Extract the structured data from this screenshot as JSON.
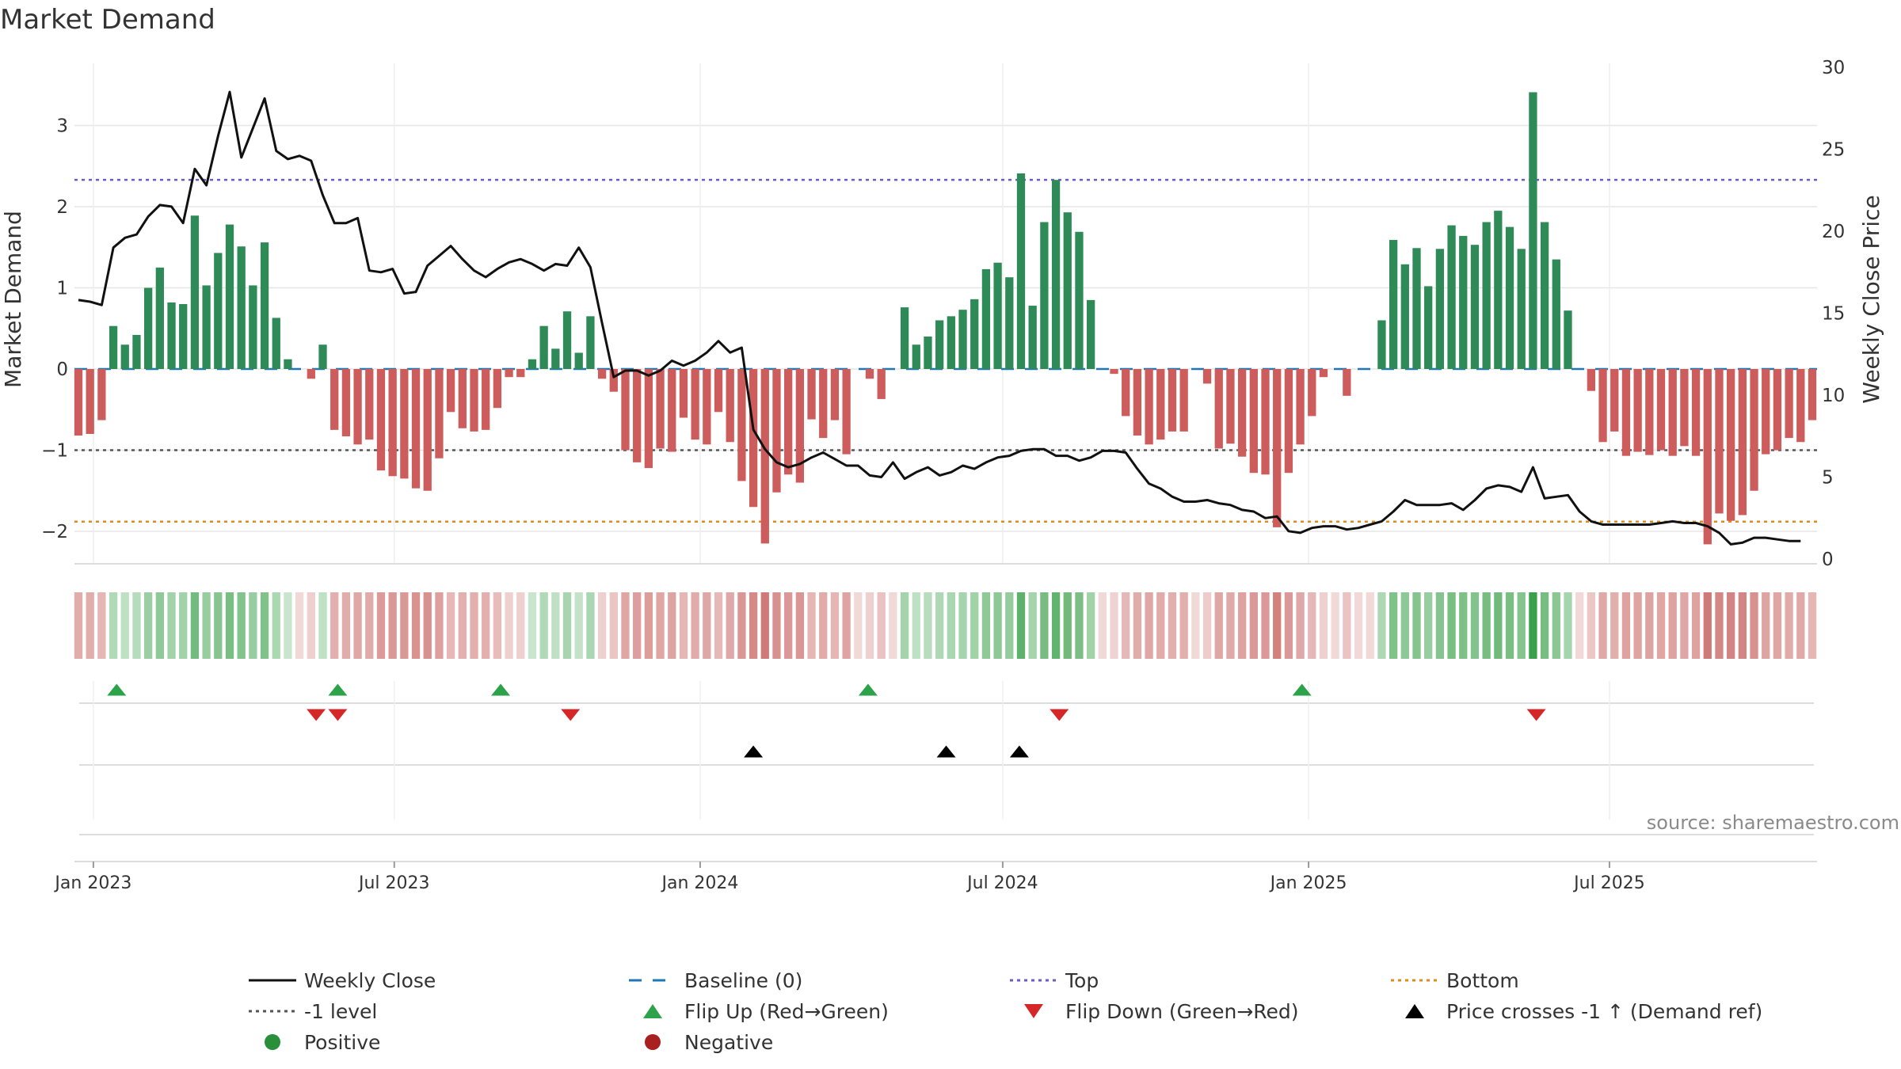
{
  "chart_data": {
    "type": "bar",
    "title": "Market Demand",
    "ylabel": "Market Demand",
    "y2label": "Weekly Close Price",
    "ylim": [
      -2.35,
      3.7
    ],
    "y2lim": [
      0,
      30
    ],
    "yticks": [
      -2,
      -1,
      0,
      1,
      2,
      3
    ],
    "y2ticks": [
      0,
      5,
      10,
      15,
      20,
      25,
      30
    ],
    "x_start": "2022-12-23",
    "x_step_days": 7,
    "xtick_labels": [
      {
        "label": "Jan 2023",
        "date": "2023-01-01"
      },
      {
        "label": "Jul 2023",
        "date": "2023-07-01"
      },
      {
        "label": "Jan 2024",
        "date": "2024-01-01"
      },
      {
        "label": "Jul 2024",
        "date": "2024-07-01"
      },
      {
        "label": "Jan 2025",
        "date": "2025-01-01"
      },
      {
        "label": "Jul 2025",
        "date": "2025-07-01"
      }
    ],
    "levels": {
      "baseline": 0,
      "top": 2.33,
      "minus_one": -1,
      "bottom": -1.88
    },
    "series": [
      {
        "name": "Market Demand",
        "values": [
          -0.82,
          -0.8,
          -0.63,
          0.53,
          0.3,
          0.42,
          1.0,
          1.25,
          0.82,
          0.8,
          1.89,
          1.03,
          1.43,
          1.78,
          1.51,
          1.03,
          1.56,
          0.63,
          0.12,
          0.0,
          -0.12,
          0.3,
          -0.75,
          -0.83,
          -0.93,
          -0.87,
          -1.25,
          -1.32,
          -1.35,
          -1.47,
          -1.5,
          -1.1,
          -0.53,
          -0.73,
          -0.77,
          -0.75,
          -0.48,
          -0.1,
          -0.1,
          0.12,
          0.53,
          0.25,
          0.71,
          0.2,
          0.65,
          -0.12,
          -0.28,
          -1.0,
          -1.15,
          -1.22,
          -0.98,
          -1.02,
          -0.6,
          -0.87,
          -0.93,
          -0.53,
          -0.9,
          -1.38,
          -1.7,
          -2.15,
          -1.52,
          -1.3,
          -1.4,
          -0.62,
          -0.85,
          -0.63,
          -1.05,
          0.0,
          -0.12,
          -0.37,
          0.0,
          0.76,
          0.3,
          0.4,
          0.6,
          0.65,
          0.73,
          0.86,
          1.23,
          1.31,
          1.13,
          2.41,
          0.78,
          1.81,
          2.33,
          1.93,
          1.69,
          0.85,
          0.0,
          -0.06,
          -0.58,
          -0.82,
          -0.93,
          -0.87,
          -0.77,
          -0.77,
          0.0,
          -0.18,
          -0.98,
          -0.92,
          -1.08,
          -1.28,
          -1.3,
          -1.95,
          -1.28,
          -0.93,
          -0.58,
          -0.1,
          0.0,
          -0.33,
          0.0,
          0.0,
          0.6,
          1.59,
          1.29,
          1.49,
          1.02,
          1.48,
          1.77,
          1.64,
          1.53,
          1.81,
          1.95,
          1.75,
          1.48,
          3.41,
          1.81,
          1.35,
          0.72,
          0.0,
          -0.27,
          -0.9,
          -0.77,
          -1.07,
          -1.02,
          -1.06,
          -1.0,
          -1.07,
          -0.95,
          -1.07,
          -2.16,
          -1.78,
          -1.87,
          -1.8,
          -1.5,
          -1.05,
          -1.0,
          -0.85,
          -0.9,
          -0.63
        ]
      },
      {
        "name": "Weekly Close",
        "values": [
          15.8,
          15.7,
          15.5,
          19.0,
          19.6,
          19.8,
          20.9,
          21.6,
          21.5,
          20.5,
          23.8,
          22.8,
          25.8,
          28.5,
          24.5,
          26.3,
          28.1,
          24.9,
          24.4,
          24.6,
          24.3,
          22.2,
          20.5,
          20.5,
          20.8,
          17.6,
          17.5,
          17.7,
          16.2,
          16.3,
          17.9,
          18.5,
          19.1,
          18.3,
          17.6,
          17.2,
          17.7,
          18.1,
          18.3,
          18.0,
          17.6,
          18.0,
          17.9,
          19.0,
          17.8,
          14.4,
          11.1,
          11.5,
          11.5,
          11.2,
          11.5,
          12.1,
          11.8,
          12.1,
          12.6,
          13.3,
          12.6,
          12.9,
          7.9,
          6.7,
          5.9,
          5.6,
          5.8,
          6.2,
          6.5,
          6.1,
          5.7,
          5.7,
          5.1,
          5.0,
          5.9,
          4.9,
          5.3,
          5.6,
          5.1,
          5.3,
          5.7,
          5.5,
          5.9,
          6.2,
          6.3,
          6.6,
          6.7,
          6.7,
          6.3,
          6.3,
          6.0,
          6.2,
          6.6,
          6.6,
          6.5,
          5.5,
          4.6,
          4.3,
          3.8,
          3.5,
          3.5,
          3.6,
          3.4,
          3.3,
          3.0,
          2.9,
          2.5,
          2.6,
          1.7,
          1.6,
          1.9,
          2.0,
          2.0,
          1.8,
          1.9,
          2.1,
          2.3,
          2.9,
          3.6,
          3.3,
          3.3,
          3.3,
          3.4,
          3.0,
          3.6,
          4.3,
          4.5,
          4.4,
          4.1,
          5.6,
          3.7,
          3.8,
          3.9,
          2.9,
          2.3,
          2.1,
          2.1,
          2.1,
          2.1,
          2.1,
          2.2,
          2.3,
          2.2,
          2.2,
          2.0,
          1.6,
          0.9,
          1.0,
          1.3,
          1.3,
          1.2,
          1.1,
          1.1
        ]
      }
    ],
    "event_rows": {
      "flip_up_dates": [
        "2023-01-15",
        "2023-05-28",
        "2023-09-03",
        "2024-04-11",
        "2024-12-28"
      ],
      "flip_down_dates": [
        "2023-05-15",
        "2023-05-28",
        "2023-10-15",
        "2024-08-04",
        "2025-05-18"
      ],
      "cross_dates": [
        "2024-02-02",
        "2024-05-28",
        "2024-07-11"
      ]
    },
    "annotations": {
      "source": "source: sharemaestro.com"
    },
    "legend": {
      "placement": "bottom",
      "entries": [
        {
          "label": "Weekly Close",
          "symbol": "line",
          "color": "#111111"
        },
        {
          "label": "Baseline (0)",
          "symbol": "dash-long",
          "color": "#1f77b4"
        },
        {
          "label": "Top",
          "symbol": "dot",
          "color": "#6a5acd"
        },
        {
          "label": "Bottom",
          "symbol": "dot",
          "color": "#e08a1e"
        },
        {
          "label": "-1 level",
          "symbol": "dot",
          "color": "#555555"
        },
        {
          "label": "Flip Up (Red→Green)",
          "symbol": "triangle-up",
          "color": "#2ca24b"
        },
        {
          "label": "Flip Down (Green→Red)",
          "symbol": "triangle-down",
          "color": "#d62728"
        },
        {
          "label": "Price crosses -1 ↑ (Demand ref)",
          "symbol": "triangle-up",
          "color": "#000000"
        },
        {
          "label": "Positive",
          "symbol": "circle",
          "color": "#2a8f3a"
        },
        {
          "label": "Negative",
          "symbol": "circle",
          "color": "#a82020"
        }
      ]
    },
    "colors": {
      "positive": "#2e8b57",
      "negative": "#cd5c5c",
      "close": "#111111",
      "grid": "#e6e6e6"
    }
  }
}
